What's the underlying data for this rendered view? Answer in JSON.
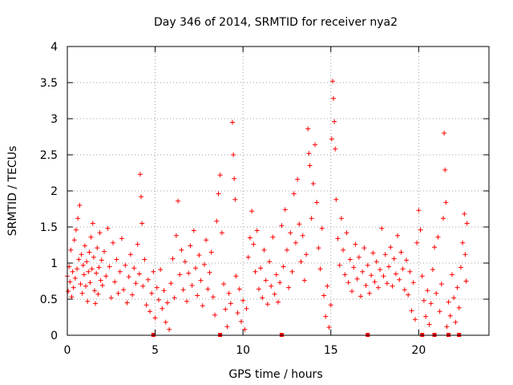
{
  "chart_data": {
    "type": "scatter",
    "title": "Day 346 of 2014, SRMTID for receiver nya2",
    "xlabel": "GPS time / hours",
    "ylabel": "SRMTID / TECUs",
    "xlim": [
      0,
      24
    ],
    "ylim": [
      0,
      4
    ],
    "xticks": [
      0,
      5,
      10,
      15,
      20
    ],
    "yticks": [
      0,
      0.5,
      1,
      1.5,
      2,
      2.5,
      3,
      3.5,
      4
    ],
    "xtick_labels": [
      "0",
      "5",
      "10",
      "15",
      "20"
    ],
    "ytick_labels": [
      "0",
      "0.5",
      "1",
      "1.5",
      "2",
      "2.5",
      "3",
      "3.5",
      "4"
    ],
    "grid": true,
    "marker": "+",
    "color": "#ff0000",
    "zero_markers": [
      4.9,
      8.7,
      12.2,
      17.1,
      20.2,
      20.9,
      21.7,
      22.3
    ],
    "series": [
      {
        "name": "SRMTID",
        "points": [
          [
            0.0,
            0.82
          ],
          [
            0.05,
            0.61
          ],
          [
            0.1,
            0.95
          ],
          [
            0.15,
            0.74
          ],
          [
            0.2,
            1.18
          ],
          [
            0.25,
            0.53
          ],
          [
            0.3,
            0.88
          ],
          [
            0.35,
            0.66
          ],
          [
            0.4,
            1.32
          ],
          [
            0.45,
            0.79
          ],
          [
            0.5,
            1.46
          ],
          [
            0.55,
            0.92
          ],
          [
            0.6,
            1.62
          ],
          [
            0.65,
            1.05
          ],
          [
            0.7,
            1.8
          ],
          [
            0.75,
            0.71
          ],
          [
            0.8,
            1.12
          ],
          [
            0.85,
            0.58
          ],
          [
            0.9,
            0.97
          ],
          [
            0.95,
            0.84
          ],
          [
            1.0,
            1.24
          ],
          [
            1.05,
            0.68
          ],
          [
            1.1,
            1.02
          ],
          [
            1.15,
            0.47
          ],
          [
            1.2,
            0.88
          ],
          [
            1.25,
            1.15
          ],
          [
            1.3,
            0.73
          ],
          [
            1.35,
            1.36
          ],
          [
            1.4,
            0.92
          ],
          [
            1.45,
            1.55
          ],
          [
            1.5,
            1.08
          ],
          [
            1.55,
            0.62
          ],
          [
            1.6,
            0.44
          ],
          [
            1.65,
            0.86
          ],
          [
            1.7,
            1.21
          ],
          [
            1.75,
            0.57
          ],
          [
            1.8,
            0.94
          ],
          [
            1.85,
            1.42
          ],
          [
            1.9,
            0.76
          ],
          [
            1.95,
            1.04
          ],
          [
            2.0,
            0.69
          ],
          [
            2.1,
            1.16
          ],
          [
            2.2,
            0.82
          ],
          [
            2.3,
            1.48
          ],
          [
            2.4,
            0.95
          ],
          [
            2.5,
            0.52
          ],
          [
            2.6,
            1.28
          ],
          [
            2.7,
            0.74
          ],
          [
            2.8,
            1.05
          ],
          [
            2.9,
            0.58
          ],
          [
            3.0,
            0.88
          ],
          [
            3.1,
            1.34
          ],
          [
            3.2,
            0.63
          ],
          [
            3.3,
            0.97
          ],
          [
            3.4,
            0.45
          ],
          [
            3.5,
            0.81
          ],
          [
            3.6,
            1.12
          ],
          [
            3.7,
            0.56
          ],
          [
            3.8,
            0.93
          ],
          [
            3.9,
            0.72
          ],
          [
            4.0,
            1.26
          ],
          [
            4.1,
            0.85
          ],
          [
            4.15,
            2.23
          ],
          [
            4.2,
            1.92
          ],
          [
            4.25,
            1.55
          ],
          [
            4.3,
            0.68
          ],
          [
            4.4,
            1.05
          ],
          [
            4.5,
            0.42
          ],
          [
            4.6,
            0.77
          ],
          [
            4.7,
            0.33
          ],
          [
            4.8,
            0.58
          ],
          [
            4.9,
            0.88
          ],
          [
            5.0,
            0.24
          ],
          [
            5.1,
            0.66
          ],
          [
            5.2,
            0.49
          ],
          [
            5.3,
            0.91
          ],
          [
            5.4,
            0.37
          ],
          [
            5.5,
            0.62
          ],
          [
            5.6,
            0.18
          ],
          [
            5.7,
            0.45
          ],
          [
            5.8,
            0.08
          ],
          [
            5.9,
            0.72
          ],
          [
            6.0,
            1.06
          ],
          [
            6.1,
            0.52
          ],
          [
            6.2,
            1.38
          ],
          [
            6.3,
            1.86
          ],
          [
            6.4,
            0.84
          ],
          [
            6.5,
            1.18
          ],
          [
            6.6,
            0.63
          ],
          [
            6.7,
            1.02
          ],
          [
            6.8,
            0.47
          ],
          [
            6.9,
            0.86
          ],
          [
            7.0,
            1.24
          ],
          [
            7.1,
            0.69
          ],
          [
            7.2,
            1.45
          ],
          [
            7.3,
            0.93
          ],
          [
            7.4,
            0.55
          ],
          [
            7.5,
            1.11
          ],
          [
            7.6,
            0.76
          ],
          [
            7.7,
            0.41
          ],
          [
            7.8,
            0.98
          ],
          [
            7.9,
            1.32
          ],
          [
            8.0,
            0.64
          ],
          [
            8.1,
            0.87
          ],
          [
            8.2,
            1.15
          ],
          [
            8.3,
            0.53
          ],
          [
            8.4,
            0.28
          ],
          [
            8.5,
            1.58
          ],
          [
            8.6,
            1.96
          ],
          [
            8.7,
            2.22
          ],
          [
            8.8,
            1.42
          ],
          [
            8.9,
            0.71
          ],
          [
            9.0,
            0.36
          ],
          [
            9.1,
            0.12
          ],
          [
            9.2,
            0.58
          ],
          [
            9.3,
            0.44
          ],
          [
            9.4,
            2.95
          ],
          [
            9.45,
            2.5
          ],
          [
            9.5,
            2.17
          ],
          [
            9.55,
            1.88
          ],
          [
            9.6,
            0.82
          ],
          [
            9.7,
            0.31
          ],
          [
            9.8,
            0.64
          ],
          [
            9.9,
            0.19
          ],
          [
            10.0,
            0.48
          ],
          [
            10.1,
            0.08
          ],
          [
            10.2,
            0.37
          ],
          [
            10.3,
            1.08
          ],
          [
            10.4,
            1.35
          ],
          [
            10.5,
            1.72
          ],
          [
            10.6,
            1.26
          ],
          [
            10.7,
            0.88
          ],
          [
            10.8,
            1.45
          ],
          [
            10.9,
            0.64
          ],
          [
            11.0,
            0.93
          ],
          [
            11.1,
            0.52
          ],
          [
            11.2,
            1.18
          ],
          [
            11.3,
            0.76
          ],
          [
            11.4,
            0.43
          ],
          [
            11.5,
            1.02
          ],
          [
            11.6,
            0.68
          ],
          [
            11.7,
            1.36
          ],
          [
            11.8,
            0.57
          ],
          [
            11.9,
            0.84
          ],
          [
            12.0,
            0.46
          ],
          [
            12.1,
            0.73
          ],
          [
            12.2,
            1.52
          ],
          [
            12.3,
            0.95
          ],
          [
            12.4,
            1.74
          ],
          [
            12.5,
            1.18
          ],
          [
            12.6,
            0.66
          ],
          [
            12.7,
            1.42
          ],
          [
            12.8,
            0.88
          ],
          [
            12.9,
            1.96
          ],
          [
            13.0,
            1.28
          ],
          [
            13.1,
            2.16
          ],
          [
            13.2,
            1.54
          ],
          [
            13.3,
            1.02
          ],
          [
            13.4,
            1.38
          ],
          [
            13.5,
            0.76
          ],
          [
            13.6,
            1.12
          ],
          [
            13.7,
            2.86
          ],
          [
            13.75,
            2.52
          ],
          [
            13.8,
            2.35
          ],
          [
            13.9,
            1.62
          ],
          [
            14.0,
            2.1
          ],
          [
            14.1,
            2.64
          ],
          [
            14.2,
            1.84
          ],
          [
            14.3,
            1.21
          ],
          [
            14.4,
            0.92
          ],
          [
            14.5,
            1.48
          ],
          [
            14.6,
            0.55
          ],
          [
            14.7,
            0.26
          ],
          [
            14.8,
            0.68
          ],
          [
            14.9,
            0.11
          ],
          [
            15.0,
            0.42
          ],
          [
            15.05,
            2.72
          ],
          [
            15.1,
            3.52
          ],
          [
            15.15,
            3.28
          ],
          [
            15.2,
            2.96
          ],
          [
            15.25,
            2.58
          ],
          [
            15.3,
            1.88
          ],
          [
            15.4,
            1.34
          ],
          [
            15.5,
            0.97
          ],
          [
            15.6,
            1.62
          ],
          [
            15.7,
            1.18
          ],
          [
            15.8,
            0.84
          ],
          [
            15.9,
            1.42
          ],
          [
            16.0,
            0.73
          ],
          [
            16.1,
            1.05
          ],
          [
            16.2,
            0.61
          ],
          [
            16.3,
            0.94
          ],
          [
            16.4,
            1.26
          ],
          [
            16.5,
            0.78
          ],
          [
            16.6,
            1.08
          ],
          [
            16.7,
            0.54
          ],
          [
            16.8,
            0.88
          ],
          [
            16.9,
            1.21
          ],
          [
            17.0,
            0.69
          ],
          [
            17.1,
            0.97
          ],
          [
            17.2,
            0.58
          ],
          [
            17.3,
            0.83
          ],
          [
            17.4,
            1.14
          ],
          [
            17.5,
            0.74
          ],
          [
            17.6,
            1.02
          ],
          [
            17.7,
            0.66
          ],
          [
            17.8,
            0.91
          ],
          [
            17.9,
            1.48
          ],
          [
            18.0,
            0.82
          ],
          [
            18.1,
            1.12
          ],
          [
            18.2,
            0.72
          ],
          [
            18.3,
            0.95
          ],
          [
            18.4,
            1.22
          ],
          [
            18.5,
            0.68
          ],
          [
            18.6,
            1.06
          ],
          [
            18.7,
            0.85
          ],
          [
            18.8,
            1.38
          ],
          [
            18.9,
            0.77
          ],
          [
            19.0,
            1.15
          ],
          [
            19.1,
            0.92
          ],
          [
            19.2,
            0.63
          ],
          [
            19.3,
            1.04
          ],
          [
            19.4,
            0.56
          ],
          [
            19.5,
            0.88
          ],
          [
            19.6,
            0.34
          ],
          [
            19.7,
            0.73
          ],
          [
            19.8,
            0.22
          ],
          [
            19.9,
            1.28
          ],
          [
            20.0,
            1.73
          ],
          [
            20.1,
            1.46
          ],
          [
            20.2,
            0.82
          ],
          [
            20.3,
            0.48
          ],
          [
            20.4,
            0.26
          ],
          [
            20.5,
            0.62
          ],
          [
            20.6,
            0.15
          ],
          [
            20.7,
            0.44
          ],
          [
            20.8,
            0.91
          ],
          [
            20.9,
            1.22
          ],
          [
            21.0,
            0.58
          ],
          [
            21.1,
            1.36
          ],
          [
            21.2,
            0.33
          ],
          [
            21.3,
            0.71
          ],
          [
            21.4,
            1.62
          ],
          [
            21.45,
            2.8
          ],
          [
            21.5,
            2.29
          ],
          [
            21.55,
            1.84
          ],
          [
            21.6,
            0.12
          ],
          [
            21.7,
            0.46
          ],
          [
            21.8,
            0.27
          ],
          [
            21.9,
            0.84
          ],
          [
            22.0,
            0.52
          ],
          [
            22.1,
            0.18
          ],
          [
            22.2,
            0.66
          ],
          [
            22.3,
            0.38
          ],
          [
            22.4,
            0.94
          ],
          [
            22.5,
            1.28
          ],
          [
            22.6,
            1.68
          ],
          [
            22.65,
            1.12
          ],
          [
            22.7,
            0.75
          ],
          [
            22.75,
            1.55
          ]
        ]
      }
    ]
  }
}
